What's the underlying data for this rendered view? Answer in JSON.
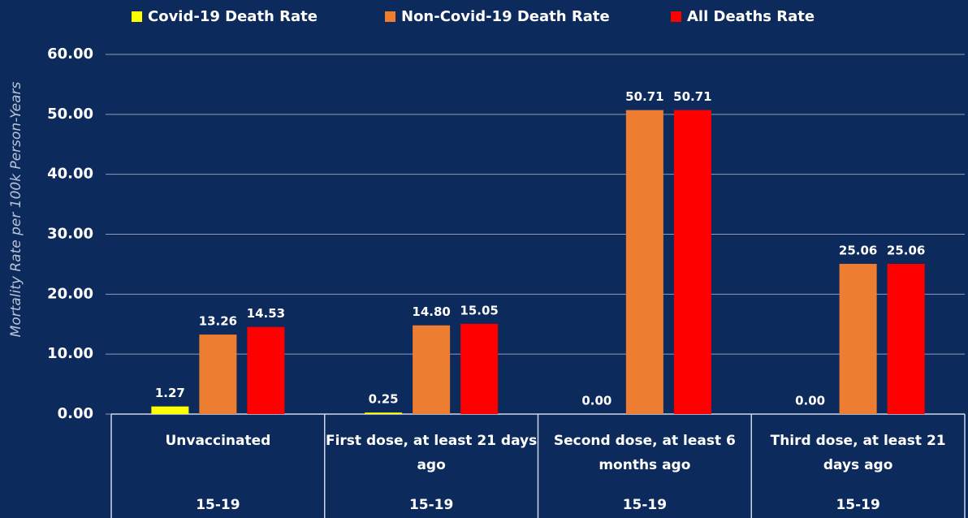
{
  "chart_data": {
    "type": "bar",
    "y_label": "Mortality Rate per 100k Person-Years",
    "categories": [
      "Unvaccinated",
      "First dose, at least 21 days ago",
      "Second dose, at least 6 months ago",
      "Third dose, at least 21 days ago"
    ],
    "category_groups": [
      "15-19",
      "15-19",
      "15-19",
      "15-19"
    ],
    "series": [
      {
        "name": "Covid-19 Death Rate",
        "color": "#ffff00",
        "values": [
          1.27,
          0.25,
          0,
          0
        ],
        "value_labels": [
          "1.27",
          "0.25",
          "0.00",
          "0.00"
        ]
      },
      {
        "name": "Non-Covid-19 Death Rate",
        "color": "#ed7d31",
        "values": [
          13.26,
          14.8,
          50.71,
          25.06
        ],
        "value_labels": [
          "13.26",
          "14.80",
          "50.71",
          "25.06"
        ]
      },
      {
        "name": "All Deaths Rate",
        "color": "#ff0000",
        "values": [
          14.53,
          15.05,
          50.71,
          25.06
        ],
        "value_labels": [
          "14.53",
          "15.05",
          "50.71",
          "25.06"
        ]
      }
    ],
    "ylim": [
      0,
      60
    ],
    "yticks": [
      {
        "value": 0,
        "label": "0.00"
      },
      {
        "value": 10,
        "label": "10.00"
      },
      {
        "value": 20,
        "label": "20.00"
      },
      {
        "value": 30,
        "label": "30.00"
      },
      {
        "value": 40,
        "label": "40.00"
      },
      {
        "value": 50,
        "label": "50.00"
      },
      {
        "value": 60,
        "label": "60.00"
      }
    ],
    "grid": true,
    "legend": "top"
  }
}
